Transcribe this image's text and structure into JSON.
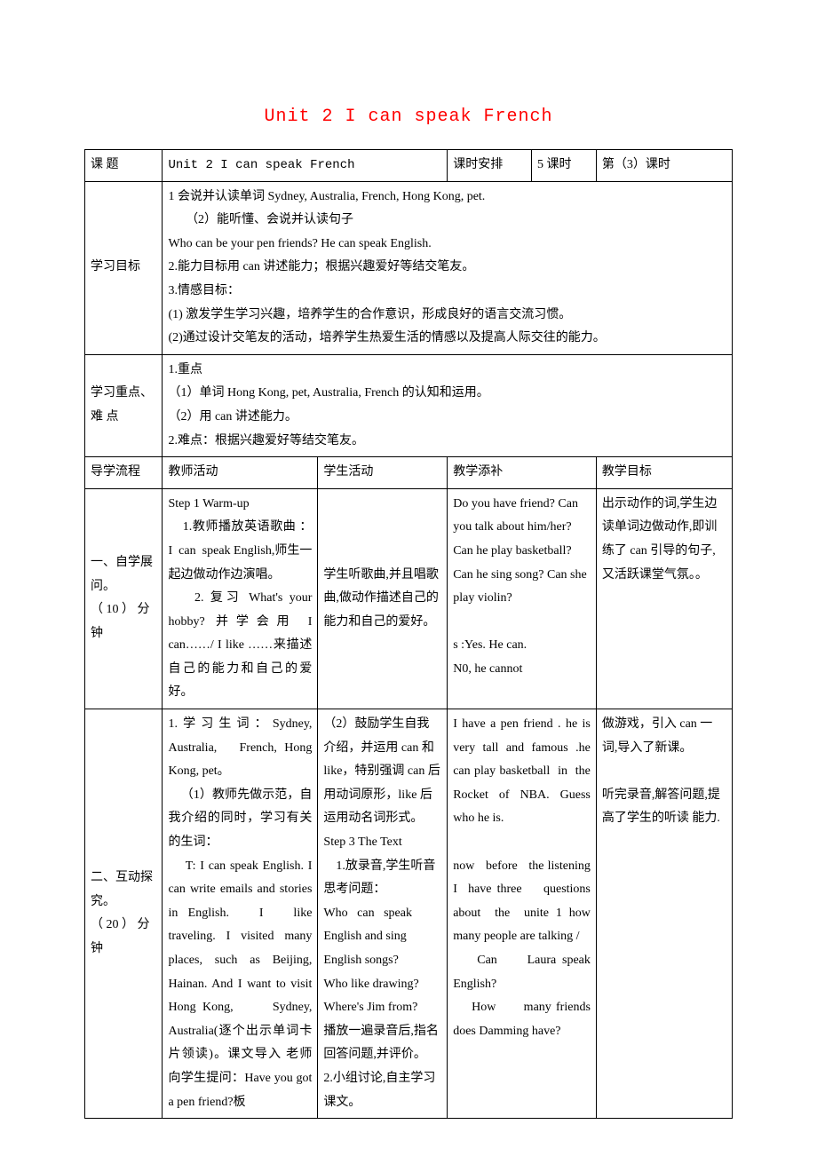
{
  "page_title": "Unit 2  I  can  speak  French",
  "header_row": {
    "keti_label": "课  题",
    "keti_value": "Unit 2  I  can  speak  French",
    "keshi_anpai_label": "课时安排",
    "keshi_count": "5 课时",
    "keshi_current": "第（3）课时"
  },
  "objectives": {
    "label": "学习目标",
    "lines": [
      "1 会说并认读单词 Sydney, Australia, French, Hong Kong, pet.",
      "（2）能听懂、会说并认读句子",
      "Who can be your pen friends? He can speak English.",
      "2.能力目标用 can 讲述能力；根据兴趣爱好等结交笔友。",
      "3.情感目标：",
      "(1) 激发学生学习兴趣，培养学生的合作意识，形成良好的语言交流习惯。",
      "(2)通过设计交笔友的活动，培养学生热爱生活的情感以及提高人际交往的能力。"
    ]
  },
  "keypoints": {
    "label_line1": "学习重点、",
    "label_line2": "难   点",
    "lines": [
      "1.重点",
      "（1）单词 Hong Kong, pet, Australia, French 的认知和运用。",
      "（2）用 can 讲述能力。",
      "2.难点：根据兴趣爱好等结交笔友。"
    ]
  },
  "flow_header": {
    "c1": "导学流程",
    "c2": "教师活动",
    "c3": "学生活动",
    "c4": "教学添补",
    "c5": "教学目标"
  },
  "row1": {
    "phase_l1": "一、自学展",
    "phase_l2": "问。",
    "phase_l3": "（ 10 ） 分",
    "phase_l4": "钟",
    "teacher": "Step 1 Warm-up\n    1.教师播放英语歌曲 ： I  can  speak English,师生一起边做动作边演唱。\n    2. 复习 What's your hobby? 并学会用 I can……/ I like ……来描述自己的能力和自己的爱好。",
    "student": "学生听歌曲,并且唱歌曲,做动作描述自己的能力和自己的爱好。",
    "supplement": "Do you have friend? Can you talk about him/her? Can he play basketball? Can he sing song? Can she play violin?\n\ns :Yes. He can.\nN0, he cannot",
    "goal": "出示动作的词,学生边读单词边做动作,即训练了 can 引导的句子,又活跃课堂气氛。。"
  },
  "row2": {
    "phase_l1": "二、互动探",
    "phase_l2": "究。",
    "phase_l3": "（ 20 ） 分",
    "phase_l4": "钟",
    "teacher": "1.学习生词：Sydney, Australia,   French, Hong Kong, pet。\n    （1）教师先做示范，自我介绍的同时，学习有关的生词：\n    T: I can speak English. I can write emails and stories in English.   I   like traveling. I visited many places, such as Beijing, Hainan. And I want to visit Hong Kong,      Sydney, Australia(逐个出示单词卡片领读)。课文导入 老师向学生提问：Have you got a pen friend?板",
    "student": "（2）鼓励学生自我介绍，并运用 can 和 like，特别强调 can 后用动词原形，like 后运用动名词形式。\nStep 3 The Text\n    1.放录音,学生听音思考问题：\nWho   can   speak English and sing English songs?\nWho like drawing?\nWhere's Jim from?\n播放一遍录音后,指名回答问题,并评价。\n2.小组讨论,自主学习课文。",
    "supplement": "I have a pen friend . he is very tall and famous .he can play basketball  in  the Rocket of NBA. Guess who he is.\n\nnow   before   the listening  I  have three    questions about  the  unite 1 how many people are talking /\n    Can     Laura speak English?\n    How      many friends     does Damming have?",
    "goal": "做游戏，引入 can 一词,导入了新课。\n\n听完录音,解答问题,提高了学生的听读 能力."
  }
}
